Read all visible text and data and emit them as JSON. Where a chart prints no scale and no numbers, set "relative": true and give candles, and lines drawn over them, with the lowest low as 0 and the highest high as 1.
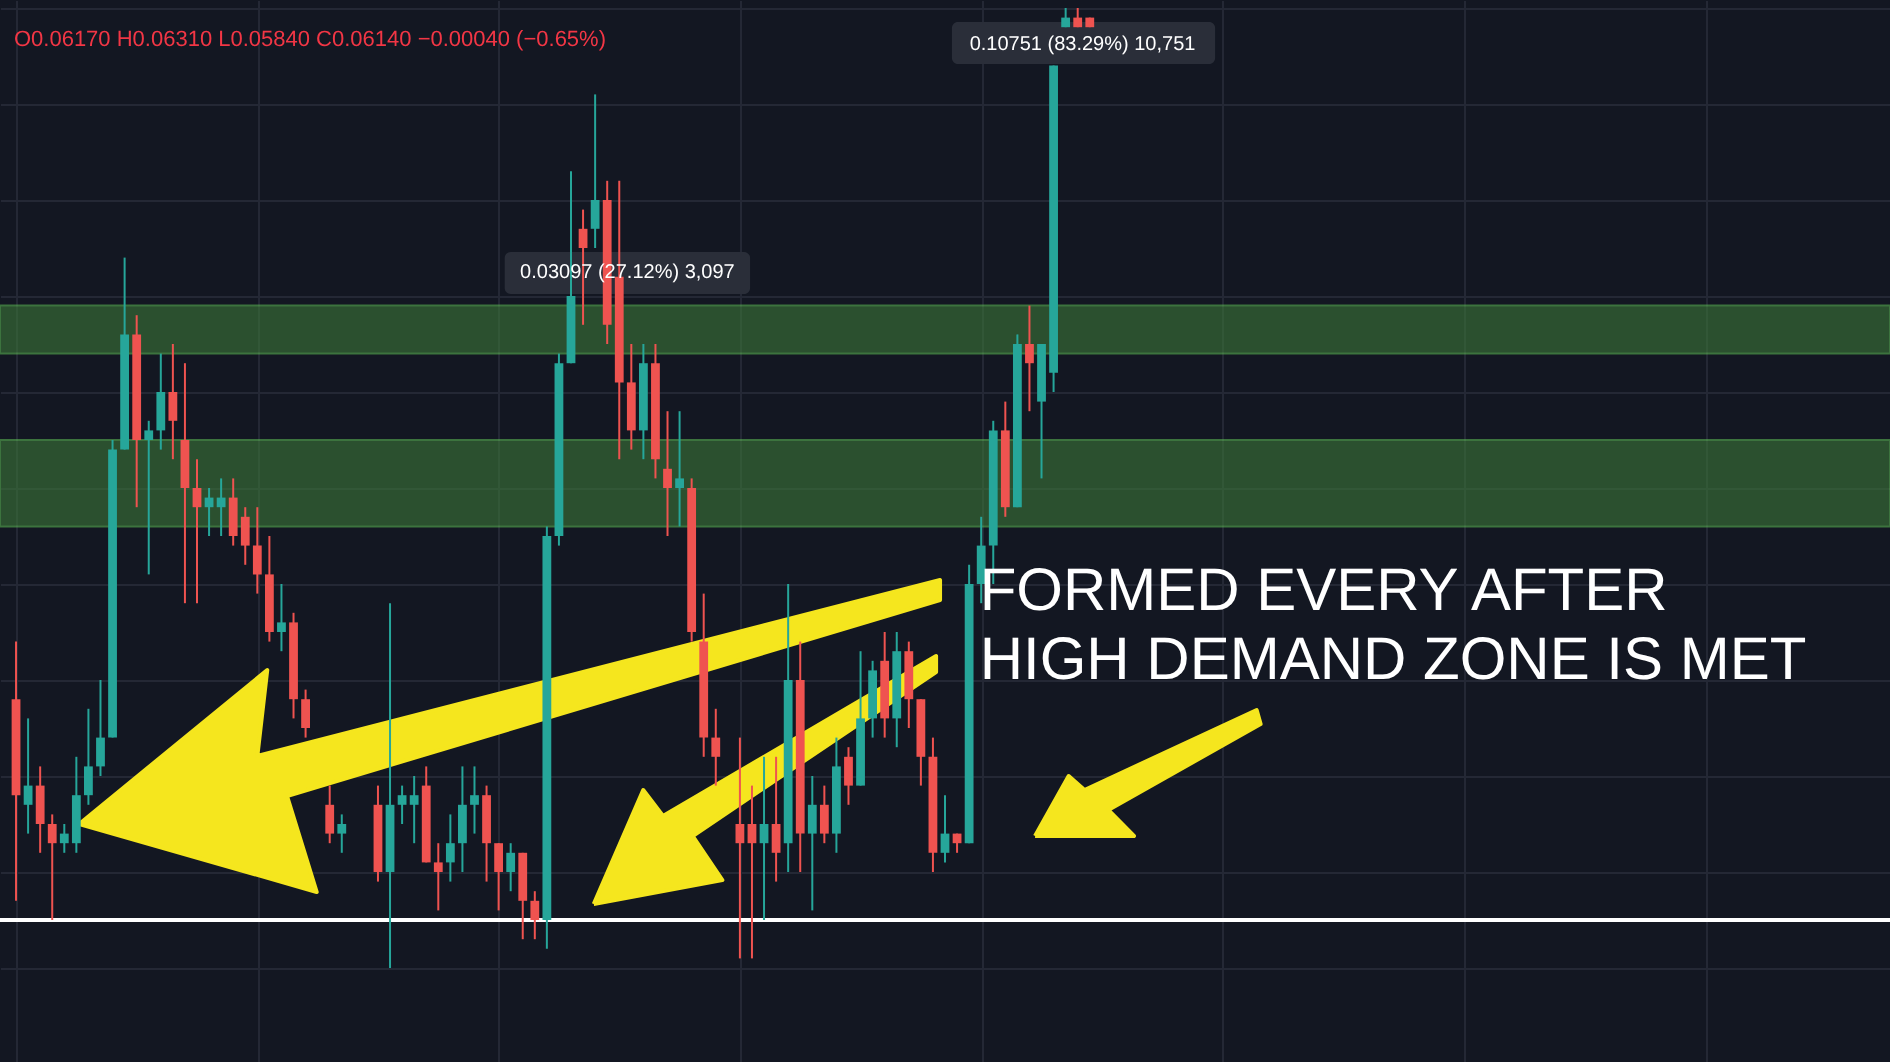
{
  "chart_data": {
    "type": "candlestick",
    "relative": true,
    "grid": true,
    "categories": [
      null,
      null,
      null,
      null,
      null,
      null,
      null,
      null,
      null,
      null,
      null,
      null,
      null,
      null,
      null,
      null,
      null,
      null,
      null,
      null,
      null,
      null,
      null,
      null,
      null,
      null,
      null,
      null,
      null,
      null,
      null,
      null,
      null,
      null,
      null,
      null,
      null,
      null,
      null,
      null,
      null,
      null,
      null,
      null,
      null,
      null,
      null,
      null,
      null,
      null,
      null,
      null,
      null,
      null,
      null,
      null,
      null,
      null,
      null,
      null,
      null,
      null,
      null,
      null,
      null,
      null,
      null,
      null,
      null,
      null,
      null,
      null,
      null,
      null,
      null,
      null,
      null,
      null,
      null,
      null,
      null,
      null,
      null,
      null,
      null,
      null,
      null,
      null,
      null,
      null,
      null,
      null,
      null,
      null,
      null,
      null,
      null,
      null,
      null,
      null,
      null,
      null,
      null,
      null,
      null,
      null,
      null,
      null,
      null,
      null,
      null,
      null,
      null,
      null,
      null,
      null,
      null,
      null,
      null,
      null,
      null,
      null,
      null,
      null,
      null,
      null,
      null,
      null,
      null,
      null,
      null,
      null,
      null,
      null,
      null,
      null,
      null,
      null,
      null,
      null,
      null,
      null,
      null,
      null,
      null,
      null,
      null,
      null,
      null,
      null,
      null,
      null,
      null,
      null,
      null
    ],
    "ohlc": [
      [
        0.28,
        0.34,
        0.07,
        0.18
      ],
      [
        0.17,
        0.26,
        0.14,
        0.19
      ],
      [
        0.19,
        0.21,
        0.12,
        0.15
      ],
      [
        0.15,
        0.16,
        0.05,
        0.13
      ],
      [
        0.13,
        0.15,
        0.12,
        0.14
      ],
      [
        0.13,
        0.22,
        0.12,
        0.18
      ],
      [
        0.18,
        0.27,
        0.17,
        0.21
      ],
      [
        0.21,
        0.3,
        0.2,
        0.24
      ],
      [
        0.24,
        0.55,
        0.24,
        0.54
      ],
      [
        0.54,
        0.74,
        0.54,
        0.66
      ],
      [
        0.66,
        0.68,
        0.48,
        0.55
      ],
      [
        0.55,
        0.57,
        0.41,
        0.56
      ],
      [
        0.56,
        0.64,
        0.54,
        0.6
      ],
      [
        0.6,
        0.65,
        0.53,
        0.57
      ],
      [
        0.55,
        0.63,
        0.38,
        0.5
      ],
      [
        0.5,
        0.53,
        0.38,
        0.48
      ],
      [
        0.48,
        0.5,
        0.45,
        0.49
      ],
      [
        0.48,
        0.51,
        0.45,
        0.49
      ],
      [
        0.49,
        0.51,
        0.44,
        0.45
      ],
      [
        0.47,
        0.48,
        0.42,
        0.44
      ],
      [
        0.44,
        0.48,
        0.39,
        0.41
      ],
      [
        0.41,
        0.45,
        0.34,
        0.35
      ],
      [
        0.35,
        0.4,
        0.33,
        0.36
      ],
      [
        0.36,
        0.37,
        0.26,
        0.28
      ],
      [
        0.28,
        0.29,
        0.24,
        0.25
      ],
      null,
      [
        0.17,
        0.19,
        0.13,
        0.14
      ],
      [
        0.14,
        0.16,
        0.12,
        0.15
      ],
      null,
      null,
      [
        0.17,
        0.19,
        0.09,
        0.1
      ],
      [
        0.1,
        0.38,
        0.0,
        0.17
      ],
      [
        0.17,
        0.19,
        0.15,
        0.18
      ],
      [
        0.17,
        0.2,
        0.13,
        0.18
      ],
      [
        0.19,
        0.21,
        0.11,
        0.11
      ],
      [
        0.11,
        0.13,
        0.06,
        0.1
      ],
      [
        0.11,
        0.16,
        0.09,
        0.13
      ],
      [
        0.13,
        0.21,
        0.1,
        0.17
      ],
      [
        0.17,
        0.21,
        0.14,
        0.18
      ],
      [
        0.18,
        0.19,
        0.09,
        0.13
      ],
      [
        0.13,
        0.13,
        0.06,
        0.1
      ],
      [
        0.1,
        0.13,
        0.08,
        0.12
      ],
      [
        0.12,
        0.12,
        0.03,
        0.07
      ],
      [
        0.07,
        0.08,
        0.03,
        0.05
      ],
      [
        0.05,
        0.46,
        0.02,
        0.45
      ],
      [
        0.45,
        0.64,
        0.44,
        0.63
      ],
      [
        0.63,
        0.83,
        0.63,
        0.7
      ],
      [
        0.77,
        0.79,
        0.67,
        0.75
      ],
      [
        0.77,
        0.91,
        0.75,
        0.8
      ],
      [
        0.8,
        0.82,
        0.65,
        0.67
      ],
      [
        0.72,
        0.82,
        0.53,
        0.61
      ],
      [
        0.61,
        0.65,
        0.54,
        0.56
      ],
      [
        0.56,
        0.65,
        0.53,
        0.63
      ],
      [
        0.63,
        0.65,
        0.51,
        0.53
      ],
      [
        0.52,
        0.58,
        0.45,
        0.5
      ],
      [
        0.5,
        0.58,
        0.46,
        0.51
      ],
      [
        0.5,
        0.51,
        0.34,
        0.35
      ],
      [
        0.34,
        0.39,
        0.22,
        0.24
      ],
      [
        0.24,
        0.27,
        0.19,
        0.22
      ],
      null,
      [
        0.15,
        0.24,
        0.01,
        0.13
      ],
      [
        0.15,
        0.19,
        0.01,
        0.13
      ],
      [
        0.13,
        0.22,
        0.05,
        0.15
      ],
      [
        0.15,
        0.22,
        0.09,
        0.12
      ],
      [
        0.13,
        0.4,
        0.1,
        0.3
      ],
      [
        0.3,
        0.34,
        0.1,
        0.14
      ],
      [
        0.14,
        0.2,
        0.06,
        0.17
      ],
      [
        0.17,
        0.19,
        0.13,
        0.14
      ],
      [
        0.14,
        0.24,
        0.12,
        0.21
      ],
      [
        0.22,
        0.23,
        0.17,
        0.19
      ],
      [
        0.19,
        0.33,
        0.19,
        0.26
      ],
      [
        0.26,
        0.32,
        0.24,
        0.31
      ],
      [
        0.32,
        0.35,
        0.24,
        0.26
      ],
      [
        0.26,
        0.35,
        0.23,
        0.33
      ],
      [
        0.33,
        0.34,
        0.25,
        0.28
      ],
      [
        0.28,
        0.28,
        0.19,
        0.22
      ],
      [
        0.22,
        0.24,
        0.1,
        0.12
      ],
      [
        0.12,
        0.18,
        0.11,
        0.14
      ],
      [
        0.14,
        0.14,
        0.12,
        0.13
      ],
      [
        0.13,
        0.42,
        0.13,
        0.4
      ],
      [
        0.4,
        0.47,
        0.38,
        0.44
      ],
      [
        0.44,
        0.57,
        0.4,
        0.56
      ],
      [
        0.56,
        0.59,
        0.47,
        0.48
      ],
      [
        0.48,
        0.66,
        0.48,
        0.65
      ],
      [
        0.65,
        0.69,
        0.58,
        0.63
      ],
      [
        0.59,
        0.65,
        0.51,
        0.65
      ],
      [
        0.62,
        0.94,
        0.6,
        0.94
      ],
      [
        0.98,
        1.0,
        0.98,
        0.99
      ],
      [
        0.99,
        1.0,
        0.98,
        0.98
      ],
      [
        0.99,
        0.99,
        0.98,
        0.98
      ],
      null,
      null,
      null,
      null,
      null,
      null,
      null,
      null,
      null,
      null,
      null,
      null,
      null,
      null,
      null,
      null,
      null,
      null,
      null,
      null,
      null,
      null,
      null,
      null,
      null,
      null,
      null,
      null,
      null,
      null,
      null,
      null,
      null,
      null,
      null,
      null,
      null,
      null,
      null,
      null,
      null,
      null,
      null,
      null,
      null,
      null,
      null,
      null,
      null,
      null,
      null,
      null,
      null,
      null,
      null,
      null,
      null,
      null,
      null,
      null,
      null,
      null,
      null,
      null,
      null
    ],
    "colors": [
      "#ef5350",
      "#26a69a",
      "#ef5350",
      "#ef5350",
      "#26a69a",
      "#26a69a",
      "#26a69a",
      "#26a69a",
      "#26a69a",
      "#26a69a",
      "#ef5350",
      "#26a69a",
      "#26a69a",
      "#ef5350",
      "#ef5350",
      "#ef5350",
      "#26a69a",
      "#26a69a",
      "#ef5350",
      "#ef5350",
      "#ef5350",
      "#ef5350",
      "#26a69a",
      "#ef5350",
      "#ef5350",
      null,
      "#ef5350",
      "#26a69a",
      null,
      null,
      "#ef5350",
      "#26a69a",
      "#26a69a",
      "#26a69a",
      "#ef5350",
      "#ef5350",
      "#26a69a",
      "#26a69a",
      "#26a69a",
      "#ef5350",
      "#ef5350",
      "#26a69a",
      "#ef5350",
      "#ef5350",
      "#26a69a",
      "#26a69a",
      "#26a69a",
      "#ef5350",
      "#26a69a",
      "#ef5350",
      "#ef5350",
      "#ef5350",
      "#26a69a",
      "#ef5350",
      "#ef5350",
      "#26a69a",
      "#ef5350",
      "#ef5350",
      "#ef5350",
      null,
      "#ef5350",
      "#ef5350",
      "#26a69a",
      "#ef5350",
      "#26a69a",
      "#ef5350",
      "#26a69a",
      "#ef5350",
      "#26a69a",
      "#ef5350",
      "#26a69a",
      "#26a69a",
      "#ef5350",
      "#26a69a",
      "#ef5350",
      "#ef5350",
      "#ef5350",
      "#26a69a",
      "#ef5350",
      "#26a69a",
      "#26a69a",
      "#26a69a",
      "#ef5350",
      "#26a69a",
      "#ef5350",
      "#26a69a",
      "#26a69a",
      "#26a69a",
      "#ef5350",
      "#ef5350",
      null,
      null,
      null,
      null,
      null,
      null,
      null,
      null,
      null,
      null,
      null,
      null,
      null,
      null,
      null,
      null,
      null,
      null,
      null,
      null,
      null,
      null,
      null,
      null,
      null,
      null,
      null,
      null,
      null,
      null,
      null,
      null,
      null,
      null,
      null,
      null,
      null,
      null,
      null,
      null,
      null,
      null,
      null,
      null,
      null,
      null,
      null,
      null,
      null,
      null,
      null,
      null,
      null,
      null,
      null,
      null,
      null,
      null,
      null,
      null,
      null,
      null,
      null,
      null,
      null
    ],
    "bands": [
      {
        "axis": "y",
        "from": 0.46,
        "to": 0.55,
        "color": "#3f7f3a"
      },
      {
        "axis": "y",
        "from": 0.64,
        "to": 0.69,
        "color": "#3f7f3a"
      }
    ],
    "ref_lines": [
      {
        "axis": "y",
        "value": 0.05,
        "color": "#ffffff"
      }
    ],
    "annotations": [
      "O0.06170 H0.06310 L0.05840 C0.06140 −0.00040 (−0.65%)",
      "0.03097 (27.12%) 3,097",
      "0.10751 (83.29%) 10,751",
      "FORMED EVERY AFTER\nHIGH DEMAND ZONE IS MET"
    ]
  }
}
